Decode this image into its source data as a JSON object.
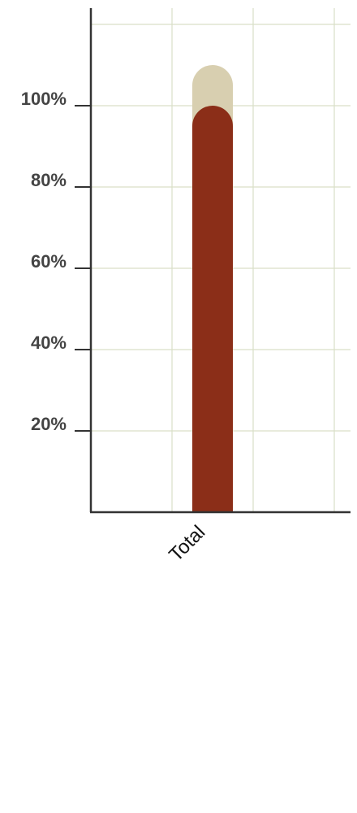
{
  "chart_data": {
    "type": "bar",
    "categories": [
      "Total"
    ],
    "series": [
      {
        "values": [
          110
        ]
      },
      {
        "values": [
          100
        ]
      }
    ],
    "y_ticks": [
      "20%",
      "40%",
      "60%",
      "80%",
      "100%"
    ],
    "ylim": [
      0,
      120
    ],
    "grid": true,
    "colors": {
      "back_bar": "#d8cfb0",
      "front_bar": "#8b2e18",
      "grid": "#d9dfc8",
      "axis": "#333333"
    }
  }
}
